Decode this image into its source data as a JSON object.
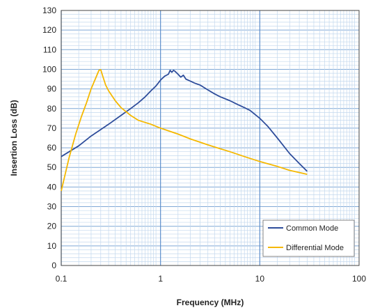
{
  "chart_data": {
    "type": "line",
    "xlabel": "Frequency (MHz)",
    "ylabel": "Insertion Loss (dB)",
    "x_scale": "log",
    "xlim": [
      0.1,
      100
    ],
    "ylim": [
      0,
      130
    ],
    "x_ticks": [
      "0.1",
      "1",
      "10",
      "100"
    ],
    "y_ticks": [
      "0",
      "10",
      "20",
      "30",
      "40",
      "50",
      "60",
      "70",
      "80",
      "90",
      "100",
      "110",
      "120",
      "130"
    ],
    "grid": true,
    "legend_position": "bottom-right",
    "series": [
      {
        "name": "Common Mode",
        "color": "#2e4d9b",
        "x": [
          0.1,
          0.15,
          0.2,
          0.3,
          0.4,
          0.5,
          0.6,
          0.7,
          0.8,
          0.9,
          1.0,
          1.1,
          1.2,
          1.25,
          1.3,
          1.35,
          1.4,
          1.5,
          1.6,
          1.7,
          1.8,
          2.0,
          2.2,
          2.5,
          3.0,
          3.5,
          4.0,
          5.0,
          6.0,
          7.0,
          8.0,
          10,
          12,
          15,
          20,
          25,
          30
        ],
        "y": [
          55.5,
          61,
          66,
          72,
          76.5,
          80,
          83,
          86,
          89,
          91.5,
          94.5,
          96.5,
          97.5,
          99.5,
          98.5,
          99.5,
          99,
          97.5,
          96,
          97,
          95,
          94,
          93,
          92,
          89.5,
          87.5,
          86,
          84,
          82,
          80.5,
          79,
          75,
          71,
          65,
          57,
          52,
          48
        ]
      },
      {
        "name": "Differential Mode",
        "color": "#f5b800",
        "x": [
          0.1,
          0.12,
          0.14,
          0.16,
          0.18,
          0.2,
          0.22,
          0.24,
          0.25,
          0.26,
          0.28,
          0.3,
          0.35,
          0.4,
          0.5,
          0.6,
          0.8,
          1.0,
          1.5,
          2.0,
          3.0,
          4.0,
          5.0,
          7.0,
          10,
          15,
          20,
          30
        ],
        "y": [
          38,
          55,
          67,
          76,
          83,
          90,
          95,
          99.5,
          99.8,
          97,
          92,
          89,
          84,
          80.5,
          76.5,
          74,
          72,
          70,
          67,
          64.5,
          61.5,
          59.5,
          58,
          55.5,
          53,
          50.5,
          48.5,
          46.5
        ]
      }
    ]
  }
}
